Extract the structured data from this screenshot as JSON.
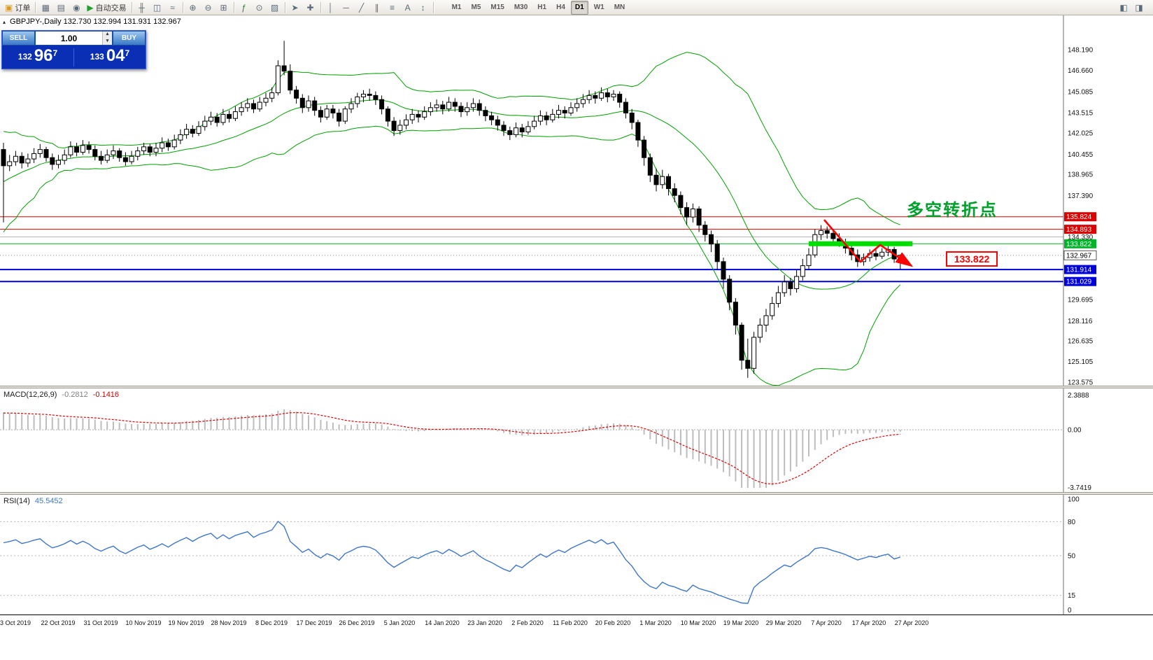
{
  "toolbar": {
    "buttons": [
      {
        "name": "new-order-button",
        "glyph": "▣",
        "glyph_color": "#d79b2e",
        "label": "订单"
      },
      {
        "name": "sep"
      },
      {
        "name": "charts-window-icon",
        "glyph": "▦"
      },
      {
        "name": "profiles-icon",
        "glyph": "▤"
      },
      {
        "name": "full-screen-icon",
        "glyph": "◉"
      },
      {
        "name": "autotrading-button",
        "glyph": "▶",
        "glyph_color": "#1fa32e",
        "label": "自动交易"
      },
      {
        "name": "sep"
      },
      {
        "name": "bar-chart-icon",
        "glyph": "╫"
      },
      {
        "name": "candlestick-chart-icon",
        "glyph": "◫"
      },
      {
        "name": "line-chart-icon",
        "glyph": "≈"
      },
      {
        "name": "sep"
      },
      {
        "name": "zoom-in-icon",
        "glyph": "⊕"
      },
      {
        "name": "zoom-out-icon",
        "glyph": "⊖"
      },
      {
        "name": "tile-windows-icon",
        "glyph": "⊞"
      },
      {
        "name": "sep"
      },
      {
        "name": "indicators-icon",
        "glyph": "ƒ",
        "glyph_color": "#2e7d32"
      },
      {
        "name": "periods-icon",
        "glyph": "⊙"
      },
      {
        "name": "templates-icon",
        "glyph": "▨"
      },
      {
        "name": "sep"
      },
      {
        "name": "cursor-icon",
        "glyph": "➤"
      },
      {
        "name": "crosshair-icon",
        "glyph": "✚"
      },
      {
        "name": "sep"
      },
      {
        "name": "vertical-line-icon",
        "glyph": "│"
      },
      {
        "name": "horizontal-line-icon",
        "glyph": "─"
      },
      {
        "name": "trendline-icon",
        "glyph": "╱"
      },
      {
        "name": "channel-icon",
        "glyph": "∥"
      },
      {
        "name": "fibonacci-icon",
        "glyph": "≡"
      },
      {
        "name": "text-icon",
        "glyph": "A"
      },
      {
        "name": "arrows-icon",
        "glyph": "↕"
      },
      {
        "name": "sep"
      }
    ],
    "timeframes": [
      "M1",
      "M5",
      "M15",
      "M30",
      "H1",
      "H4",
      "D1",
      "W1",
      "MN"
    ],
    "active_timeframe": "D1",
    "right_icons": [
      {
        "name": "chart-shift-icon",
        "glyph": "◧"
      },
      {
        "name": "chart-autoscroll-icon",
        "glyph": "◨"
      }
    ]
  },
  "chart": {
    "title": "GBPJPY-,Daily 132.730 132.994 131.931 132.967",
    "symbol": "GBPJPY-",
    "period": "Daily",
    "collapse_arrow": "▴"
  },
  "trade_panel": {
    "sell_label": "SELL",
    "buy_label": "BUY",
    "volume": "1.00",
    "spinner_up": "▴",
    "spinner_down": "▾",
    "sell_price": {
      "prefix": "132",
      "main": "96",
      "sup": "7"
    },
    "buy_price": {
      "prefix": "133",
      "main": "04",
      "sup": "7"
    }
  },
  "annotations": {
    "turning_point_text": "多空转折点",
    "turning_point_color": "#00a02c",
    "price_box_text": "133.822",
    "price_box_color": "#ff0000",
    "highlight_bar_color": "#00dd00",
    "arrow_color": "#ff0000"
  },
  "price_axis": {
    "labels": [
      "148.190",
      "146.660",
      "145.085",
      "143.515",
      "142.025",
      "140.455",
      "138.965",
      "137.390",
      "134.330",
      "129.695",
      "128.116",
      "126.635",
      "125.105",
      "123.575"
    ],
    "tags": [
      {
        "text": "135.824",
        "bg": "#dd0000",
        "fg": "#ffffff"
      },
      {
        "text": "134.893",
        "bg": "#dd0000",
        "fg": "#ffffff"
      },
      {
        "text": "133.822",
        "bg": "#00b42a",
        "fg": "#ffffff"
      },
      {
        "text": "132.967",
        "bg": "#ffffff",
        "fg": "#000000",
        "border": "#555555"
      },
      {
        "text": "131.914",
        "bg": "#0000dd",
        "fg": "#ffffff"
      },
      {
        "text": "131.029",
        "bg": "#0000dd",
        "fg": "#ffffff"
      }
    ]
  },
  "chart_data": {
    "type": "candlestick",
    "symbol": "GBPJPY-",
    "timeframe": "Daily",
    "y_range": [
      123.575,
      148.19
    ],
    "x_labels": [
      "3 Oct 2019",
      "22 Oct 2019",
      "31 Oct 2019",
      "10 Nov 2019",
      "19 Nov 2019",
      "28 Nov 2019",
      "8 Dec 2019",
      "17 Dec 2019",
      "26 Dec 2019",
      "5 Jan 2020",
      "14 Jan 2020",
      "23 Jan 2020",
      "2 Feb 2020",
      "11 Feb 2020",
      "20 Feb 2020",
      "1 Mar 2020",
      "10 Mar 2020",
      "19 Mar 2020",
      "29 Mar 2020",
      "7 Apr 2020",
      "17 Apr 2020",
      "27 Apr 2020"
    ],
    "horizontal_lines": [
      {
        "price": 135.824,
        "color": "#dd0000",
        "width": 1,
        "style": "solid"
      },
      {
        "price": 134.893,
        "color": "#dd0000",
        "width": 1,
        "style": "solid"
      },
      {
        "price": 134.33,
        "color": "#b4b4b4",
        "width": 1,
        "style": "solid"
      },
      {
        "price": 133.822,
        "color": "#00b42a",
        "width": 1,
        "style": "solid"
      },
      {
        "price": 132.967,
        "color": "#999999",
        "width": 1,
        "style": "dot"
      },
      {
        "price": 131.914,
        "color": "#0000dd",
        "width": 2,
        "style": "solid"
      },
      {
        "price": 131.029,
        "color": "#0000dd",
        "width": 2,
        "style": "solid"
      }
    ],
    "highlight_zone": {
      "price": 133.822,
      "x_from_bar": 132,
      "x_to_bar": 149
    },
    "warmup_closes": [
      135.5,
      134.8,
      135.9,
      135.2,
      136.4,
      137.0,
      136.2,
      137.6,
      138.4,
      137.8,
      139.0,
      139.8,
      139.2,
      140.3,
      140.8,
      139.9,
      140.7,
      140.1,
      139.6,
      140.0
    ],
    "candles_ohlc": [
      [
        140.8,
        141.3,
        135.4,
        139.6
      ],
      [
        139.6,
        140.4,
        139.2,
        139.9
      ],
      [
        139.9,
        140.7,
        139.6,
        140.3
      ],
      [
        140.3,
        140.6,
        139.4,
        139.8
      ],
      [
        139.8,
        140.5,
        139.5,
        140.1
      ],
      [
        140.1,
        140.9,
        139.8,
        140.5
      ],
      [
        140.5,
        141.2,
        140.2,
        140.8
      ],
      [
        140.8,
        141.0,
        139.9,
        140.2
      ],
      [
        140.2,
        140.5,
        139.3,
        139.7
      ],
      [
        139.7,
        140.4,
        139.4,
        140.0
      ],
      [
        140.0,
        140.8,
        139.7,
        140.4
      ],
      [
        140.4,
        141.4,
        140.2,
        141.0
      ],
      [
        141.0,
        141.3,
        140.3,
        140.6
      ],
      [
        140.6,
        141.5,
        140.4,
        141.1
      ],
      [
        141.1,
        141.4,
        140.5,
        140.8
      ],
      [
        140.8,
        141.1,
        140.0,
        140.3
      ],
      [
        140.3,
        140.7,
        139.7,
        140.0
      ],
      [
        140.0,
        140.8,
        139.8,
        140.4
      ],
      [
        140.4,
        141.1,
        140.1,
        140.7
      ],
      [
        140.7,
        140.9,
        139.9,
        140.2
      ],
      [
        140.2,
        140.6,
        139.6,
        139.9
      ],
      [
        139.9,
        140.7,
        139.7,
        140.3
      ],
      [
        140.3,
        141.0,
        140.0,
        140.7
      ],
      [
        140.7,
        141.3,
        140.4,
        141.0
      ],
      [
        141.0,
        141.2,
        140.3,
        140.6
      ],
      [
        140.6,
        141.3,
        140.3,
        140.9
      ],
      [
        140.9,
        141.7,
        140.6,
        141.3
      ],
      [
        141.3,
        141.6,
        140.7,
        141.0
      ],
      [
        141.0,
        141.9,
        140.8,
        141.5
      ],
      [
        141.5,
        142.3,
        141.2,
        141.9
      ],
      [
        141.9,
        142.7,
        141.6,
        142.3
      ],
      [
        142.3,
        142.6,
        141.7,
        142.0
      ],
      [
        142.0,
        142.9,
        141.8,
        142.5
      ],
      [
        142.5,
        143.3,
        142.2,
        142.9
      ],
      [
        142.9,
        143.6,
        142.6,
        143.2
      ],
      [
        143.2,
        143.5,
        142.5,
        142.8
      ],
      [
        142.8,
        143.8,
        142.6,
        143.4
      ],
      [
        143.4,
        143.7,
        142.8,
        143.1
      ],
      [
        143.1,
        144.0,
        142.9,
        143.6
      ],
      [
        143.6,
        144.3,
        143.3,
        143.9
      ],
      [
        143.9,
        144.6,
        143.6,
        144.2
      ],
      [
        144.2,
        144.5,
        143.5,
        143.8
      ],
      [
        143.8,
        144.7,
        143.6,
        144.3
      ],
      [
        144.3,
        145.0,
        144.0,
        144.6
      ],
      [
        144.6,
        145.4,
        144.3,
        145.0
      ],
      [
        145.0,
        147.4,
        144.8,
        147.0
      ],
      [
        147.0,
        148.85,
        146.3,
        146.6
      ],
      [
        146.6,
        147.1,
        144.9,
        145.2
      ],
      [
        145.2,
        145.5,
        144.2,
        144.6
      ],
      [
        144.6,
        144.9,
        143.5,
        143.9
      ],
      [
        143.9,
        144.8,
        143.6,
        144.4
      ],
      [
        144.4,
        144.7,
        143.3,
        143.7
      ],
      [
        143.7,
        144.0,
        142.8,
        143.2
      ],
      [
        143.2,
        144.1,
        143.0,
        143.8
      ],
      [
        143.8,
        144.1,
        143.1,
        143.5
      ],
      [
        143.5,
        143.8,
        142.5,
        142.9
      ],
      [
        142.9,
        144.0,
        142.7,
        143.8
      ],
      [
        143.8,
        144.6,
        143.5,
        144.2
      ],
      [
        144.2,
        145.0,
        143.9,
        144.7
      ],
      [
        144.7,
        145.2,
        144.3,
        144.9
      ],
      [
        144.9,
        145.3,
        144.4,
        144.8
      ],
      [
        144.8,
        145.1,
        144.1,
        144.5
      ],
      [
        144.5,
        144.8,
        143.4,
        143.8
      ],
      [
        143.8,
        144.0,
        142.5,
        142.9
      ],
      [
        142.9,
        143.2,
        141.8,
        142.2
      ],
      [
        142.2,
        143.0,
        141.9,
        142.6
      ],
      [
        142.6,
        143.4,
        142.3,
        143.0
      ],
      [
        143.0,
        143.8,
        142.7,
        143.4
      ],
      [
        143.4,
        143.7,
        142.8,
        143.2
      ],
      [
        143.2,
        144.0,
        143.0,
        143.6
      ],
      [
        143.6,
        144.3,
        143.3,
        143.9
      ],
      [
        143.9,
        144.5,
        143.6,
        144.1
      ],
      [
        144.1,
        144.4,
        143.4,
        143.8
      ],
      [
        143.8,
        144.7,
        143.6,
        144.3
      ],
      [
        144.3,
        144.6,
        143.6,
        144.0
      ],
      [
        144.0,
        144.3,
        143.2,
        143.6
      ],
      [
        143.6,
        144.3,
        143.3,
        143.9
      ],
      [
        143.9,
        144.6,
        143.6,
        144.2
      ],
      [
        144.2,
        144.5,
        143.3,
        143.7
      ],
      [
        143.7,
        144.0,
        142.9,
        143.3
      ],
      [
        143.3,
        143.6,
        142.6,
        143.0
      ],
      [
        143.0,
        143.3,
        142.2,
        142.6
      ],
      [
        142.6,
        142.9,
        141.8,
        142.2
      ],
      [
        142.2,
        142.5,
        141.5,
        141.9
      ],
      [
        141.9,
        142.8,
        141.7,
        142.4
      ],
      [
        142.4,
        142.7,
        141.7,
        142.1
      ],
      [
        142.1,
        142.9,
        141.9,
        142.5
      ],
      [
        142.5,
        143.3,
        142.3,
        142.9
      ],
      [
        142.9,
        143.7,
        142.6,
        143.3
      ],
      [
        143.3,
        143.6,
        142.6,
        143.0
      ],
      [
        143.0,
        143.8,
        142.8,
        143.4
      ],
      [
        143.4,
        144.1,
        143.1,
        143.7
      ],
      [
        143.7,
        144.0,
        143.1,
        143.5
      ],
      [
        143.5,
        144.3,
        143.3,
        143.9
      ],
      [
        143.9,
        144.6,
        143.6,
        144.2
      ],
      [
        144.2,
        144.9,
        143.9,
        144.5
      ],
      [
        144.5,
        145.2,
        144.2,
        144.8
      ],
      [
        144.8,
        145.1,
        144.2,
        144.6
      ],
      [
        144.6,
        145.4,
        144.4,
        145.0
      ],
      [
        145.0,
        145.3,
        144.3,
        144.7
      ],
      [
        144.7,
        145.2,
        144.4,
        144.9
      ],
      [
        144.9,
        145.1,
        143.9,
        144.3
      ],
      [
        144.3,
        144.6,
        143.1,
        143.5
      ],
      [
        143.5,
        143.8,
        142.3,
        142.8
      ],
      [
        142.8,
        143.0,
        141.0,
        141.5
      ],
      [
        141.5,
        141.8,
        139.6,
        140.2
      ],
      [
        140.2,
        140.5,
        138.4,
        138.9
      ],
      [
        138.9,
        139.4,
        137.7,
        138.2
      ],
      [
        138.2,
        139.3,
        137.9,
        138.8
      ],
      [
        138.8,
        139.0,
        137.4,
        137.9
      ],
      [
        137.9,
        138.3,
        136.9,
        137.4
      ],
      [
        137.4,
        137.7,
        136.0,
        136.5
      ],
      [
        136.5,
        136.9,
        135.2,
        135.8
      ],
      [
        135.8,
        136.8,
        135.4,
        136.4
      ],
      [
        136.4,
        136.6,
        134.7,
        135.2
      ],
      [
        135.2,
        135.5,
        134.0,
        134.5
      ],
      [
        134.5,
        134.8,
        133.2,
        133.8
      ],
      [
        133.8,
        134.1,
        131.9,
        132.5
      ],
      [
        132.5,
        132.8,
        130.5,
        131.2
      ],
      [
        131.2,
        131.5,
        128.9,
        129.5
      ],
      [
        129.5,
        129.8,
        127.1,
        127.8
      ],
      [
        127.8,
        128.0,
        124.5,
        125.2
      ],
      [
        125.2,
        126.8,
        123.9,
        124.6
      ],
      [
        124.6,
        127.3,
        124.2,
        126.9
      ],
      [
        126.9,
        128.3,
        126.5,
        127.8
      ],
      [
        127.8,
        129.0,
        127.3,
        128.5
      ],
      [
        128.5,
        129.9,
        128.2,
        129.4
      ],
      [
        129.4,
        130.7,
        129.1,
        130.2
      ],
      [
        130.2,
        131.5,
        129.9,
        131.0
      ],
      [
        131.0,
        131.3,
        130.0,
        130.5
      ],
      [
        130.5,
        131.9,
        130.2,
        131.4
      ],
      [
        131.4,
        132.7,
        131.1,
        132.2
      ],
      [
        132.2,
        133.5,
        131.9,
        133.0
      ],
      [
        133.0,
        134.9,
        132.8,
        134.5
      ],
      [
        134.5,
        135.2,
        134.1,
        134.8
      ],
      [
        134.8,
        135.1,
        134.2,
        134.6
      ],
      [
        134.6,
        134.9,
        133.9,
        134.2
      ],
      [
        134.2,
        134.6,
        133.6,
        133.9
      ],
      [
        133.9,
        134.2,
        133.1,
        133.5
      ],
      [
        133.5,
        133.8,
        132.6,
        133.0
      ],
      [
        133.0,
        133.4,
        132.1,
        132.5
      ],
      [
        132.5,
        133.1,
        132.2,
        132.8
      ],
      [
        132.8,
        133.4,
        132.5,
        133.1
      ],
      [
        133.1,
        133.5,
        132.6,
        132.9
      ],
      [
        132.9,
        133.5,
        132.7,
        133.2
      ],
      [
        133.2,
        133.7,
        132.9,
        133.4
      ],
      [
        133.4,
        133.6,
        132.4,
        132.7
      ],
      [
        132.73,
        132.994,
        131.931,
        132.967
      ]
    ],
    "indicators": {
      "bollinger": {
        "period": 20,
        "deviation": 2,
        "color": "#00a000"
      },
      "macd": {
        "label": "MACD(12,26,9)",
        "fast": 12,
        "slow": 26,
        "signal": 9,
        "current_main": "-0.2812",
        "current_signal": "-0.1416",
        "axis_labels": [
          "2.3888",
          "0.00",
          "-3.7419"
        ],
        "histogram_color": "#bdbdbd",
        "signal_color": "#e00000"
      },
      "rsi": {
        "label": "RSI(14)",
        "period": 14,
        "current": "45.5452",
        "levels": [
          80,
          50,
          15
        ],
        "axis_labels": [
          "100",
          "80",
          "50",
          "15",
          "0"
        ],
        "line_color": "#3e76c8"
      }
    }
  }
}
